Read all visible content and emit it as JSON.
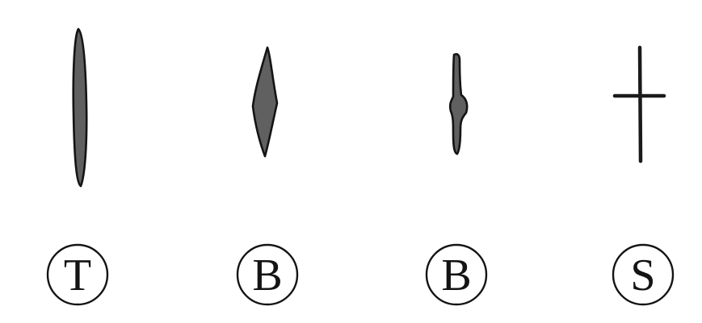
{
  "figure": {
    "columns": [
      {
        "id": "col-1",
        "shape": "long-spindle",
        "label": "T"
      },
      {
        "id": "col-2",
        "shape": "short-spindle",
        "label": "B"
      },
      {
        "id": "col-3",
        "shape": "thin-rod-with-bulge",
        "label": "B"
      },
      {
        "id": "col-4",
        "shape": "cross",
        "label": "S"
      }
    ],
    "colors": {
      "fill": "#606060",
      "outline": "#141414",
      "background": "#ffffff"
    }
  }
}
